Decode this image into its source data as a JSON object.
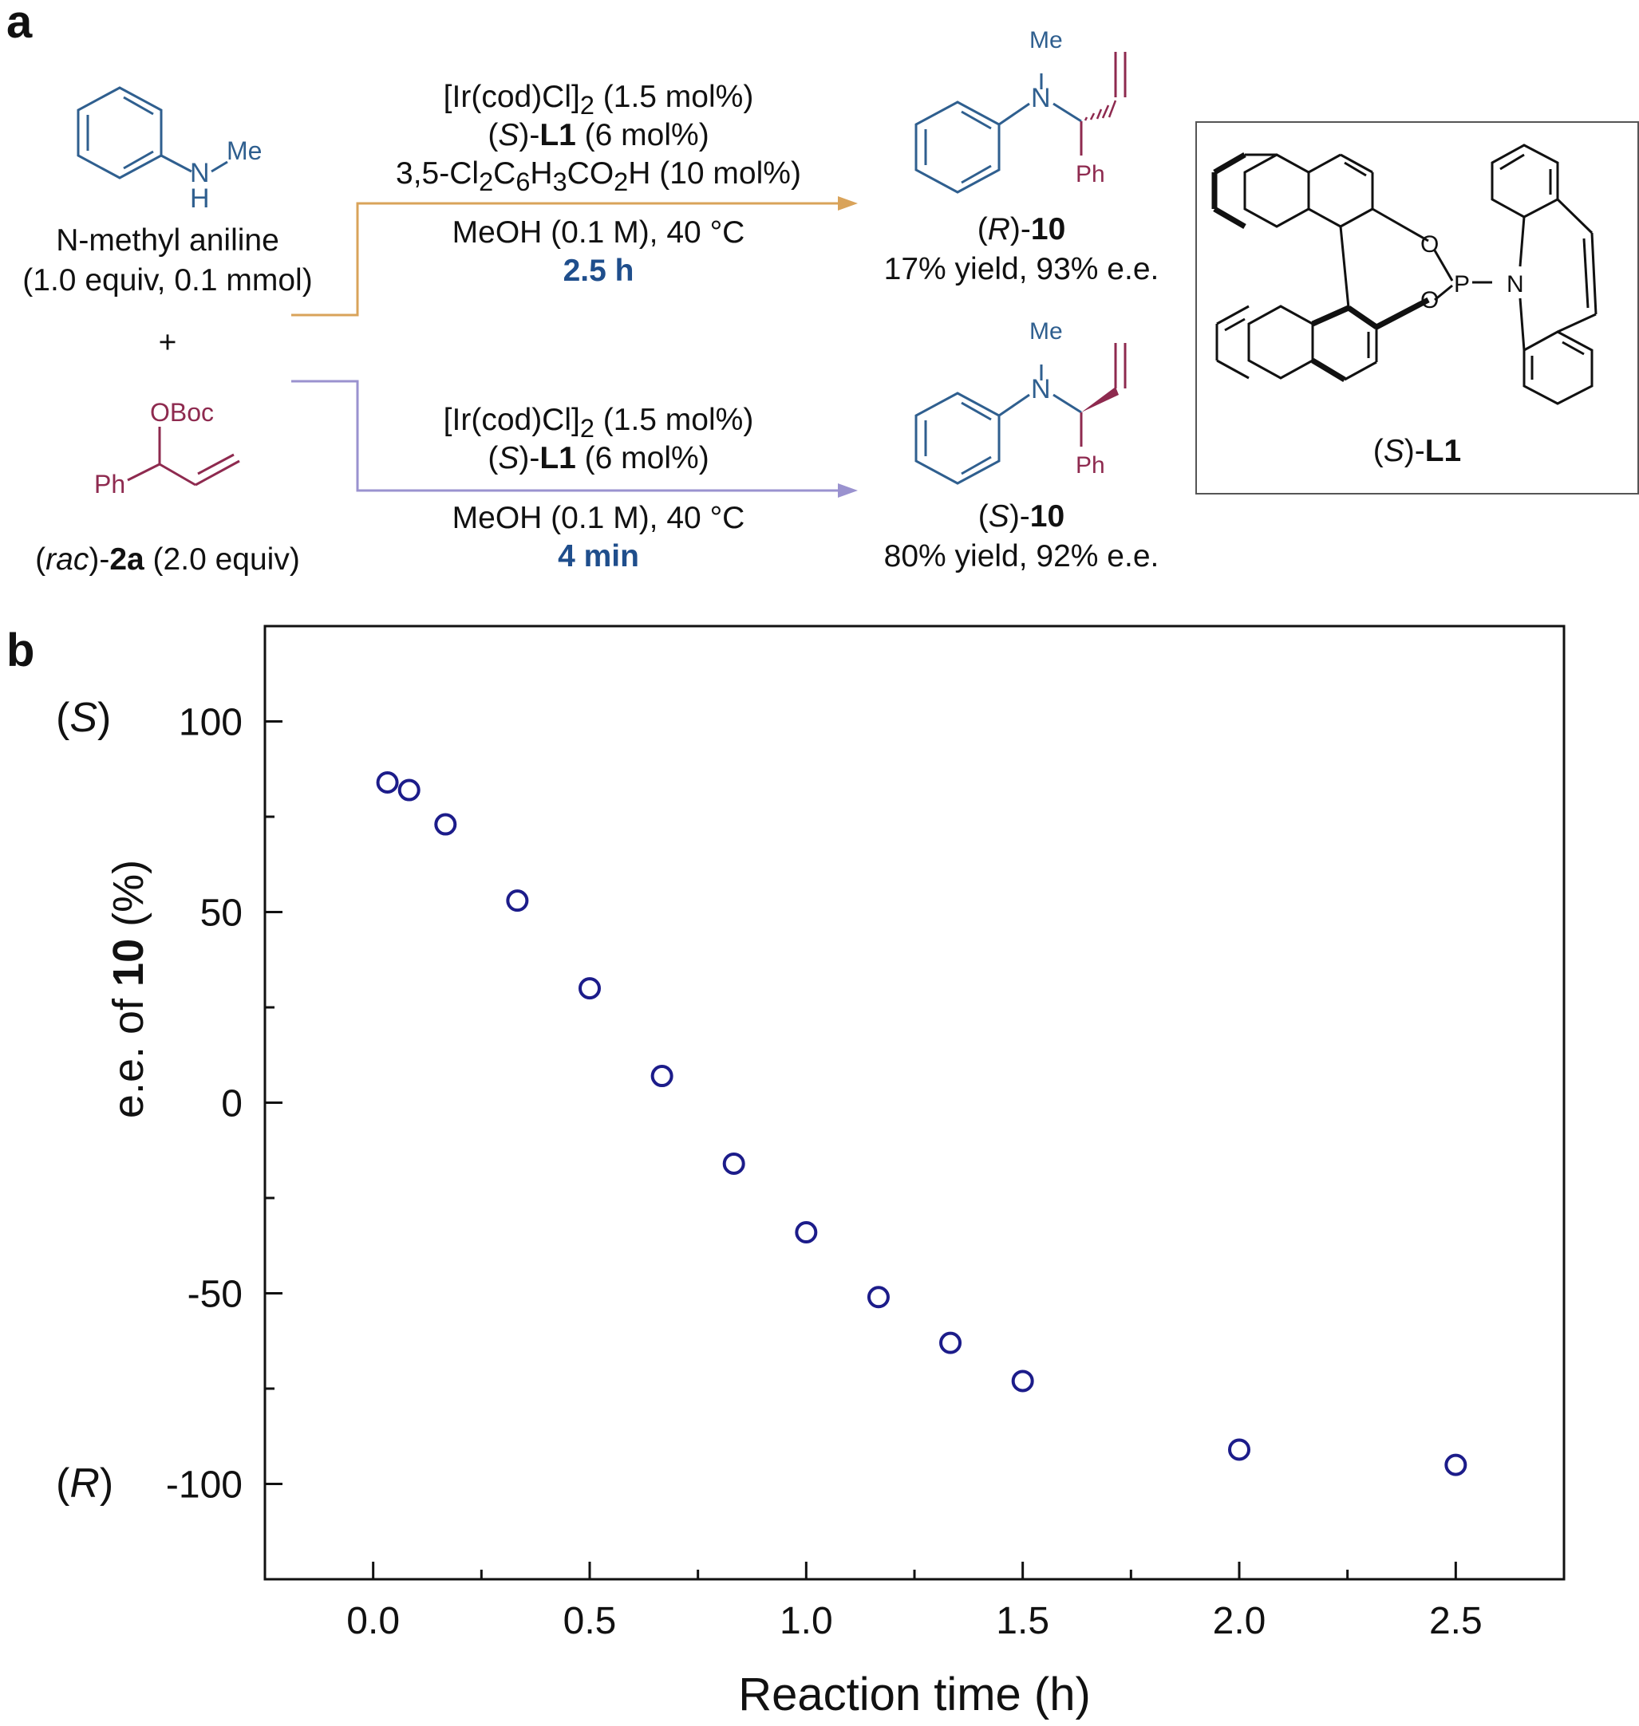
{
  "panel_a": {
    "label": "a",
    "reactant1": {
      "name": "N-methyl aniline",
      "amount": "(1.0 equiv, 0.1 mmol)",
      "atom_n": "N",
      "atom_h": "H",
      "group_me": "Me"
    },
    "plus": "+",
    "reactant2": {
      "name_prefix": "(",
      "name_italic": "rac",
      "name_mid": ")-",
      "name_bold": "2a",
      "name_suffix": " (2.0 equiv)",
      "group_oboc": "OBoc",
      "group_ph": "Ph"
    },
    "route_top": {
      "line1_pre": "[Ir(cod)Cl]",
      "line1_sub": "2",
      "line1_post": " (1.5 mol%)",
      "line2_pre": "(",
      "line2_italic": "S",
      "line2_mid": ")-",
      "line2_bold": "L1",
      "line2_post": " (6 mol%)",
      "line3_a": "3,5-Cl",
      "line3_s1": "2",
      "line3_b": "C",
      "line3_s2": "6",
      "line3_c": "H",
      "line3_s3": "3",
      "line3_d": "CO",
      "line3_s4": "2",
      "line3_e": "H (10 mol%)",
      "line4": "MeOH (0.1 M), 40 °C",
      "time": "2.5 h",
      "arrow_color": "#d9a35a"
    },
    "route_bottom": {
      "line1_pre": "[Ir(cod)Cl]",
      "line1_sub": "2",
      "line1_post": " (1.5 mol%)",
      "line2_pre": "(",
      "line2_italic": "S",
      "line2_mid": ")-",
      "line2_bold": "L1",
      "line2_post": " (6 mol%)",
      "line4": "MeOH (0.1 M), 40 °C",
      "time": "4 min",
      "arrow_color": "#9a92cf"
    },
    "product_top": {
      "label_pre": "(",
      "label_italic": "R",
      "label_mid": ")-",
      "label_bold": "10",
      "result": "17% yield, 93% e.e.",
      "group_me": "Me",
      "atom_n": "N",
      "group_ph": "Ph"
    },
    "product_bottom": {
      "label_pre": "(",
      "label_italic": "S",
      "label_mid": ")-",
      "label_bold": "10",
      "result": "80% yield, 92% e.e.",
      "group_me": "Me",
      "atom_n": "N",
      "group_ph": "Ph"
    },
    "ligand": {
      "label_pre": "(",
      "label_italic": "S",
      "label_mid": ")-",
      "label_bold": "L1",
      "atom_o1": "O",
      "atom_o2": "O",
      "atom_p": "P",
      "atom_n": "N"
    }
  },
  "panel_b": {
    "label": "b",
    "label_s": "S",
    "label_r": "R",
    "ylabel_pre": "e.e. of ",
    "ylabel_bold": "10",
    "ylabel_post": " (%)",
    "marker_color": "#1c1c8a"
  },
  "chart_data": {
    "type": "scatter",
    "xlabel": "Reaction time (h)",
    "ylabel": "e.e. of 10 (%)",
    "xlim": [
      -0.25,
      2.75
    ],
    "ylim": [
      -125,
      125
    ],
    "xticks": [
      0.0,
      0.5,
      1.0,
      1.5,
      2.0,
      2.5
    ],
    "xtick_labels": [
      "0.0",
      "0.5",
      "1.0",
      "1.5",
      "2.0",
      "2.5"
    ],
    "yticks": [
      100,
      50,
      0,
      -50,
      -100
    ],
    "ytick_labels": [
      "100",
      "50",
      "0",
      "-50",
      "-100"
    ],
    "grid": false,
    "series": [
      {
        "x": [
          0.033,
          0.083,
          0.167,
          0.333,
          0.5,
          0.667,
          0.833,
          1.0,
          1.167,
          1.333,
          1.5,
          2.0,
          2.5
        ],
        "y": [
          84,
          82,
          73,
          53,
          30,
          7,
          -16,
          -34,
          -51,
          -63,
          -73,
          -91,
          -95
        ]
      }
    ]
  }
}
